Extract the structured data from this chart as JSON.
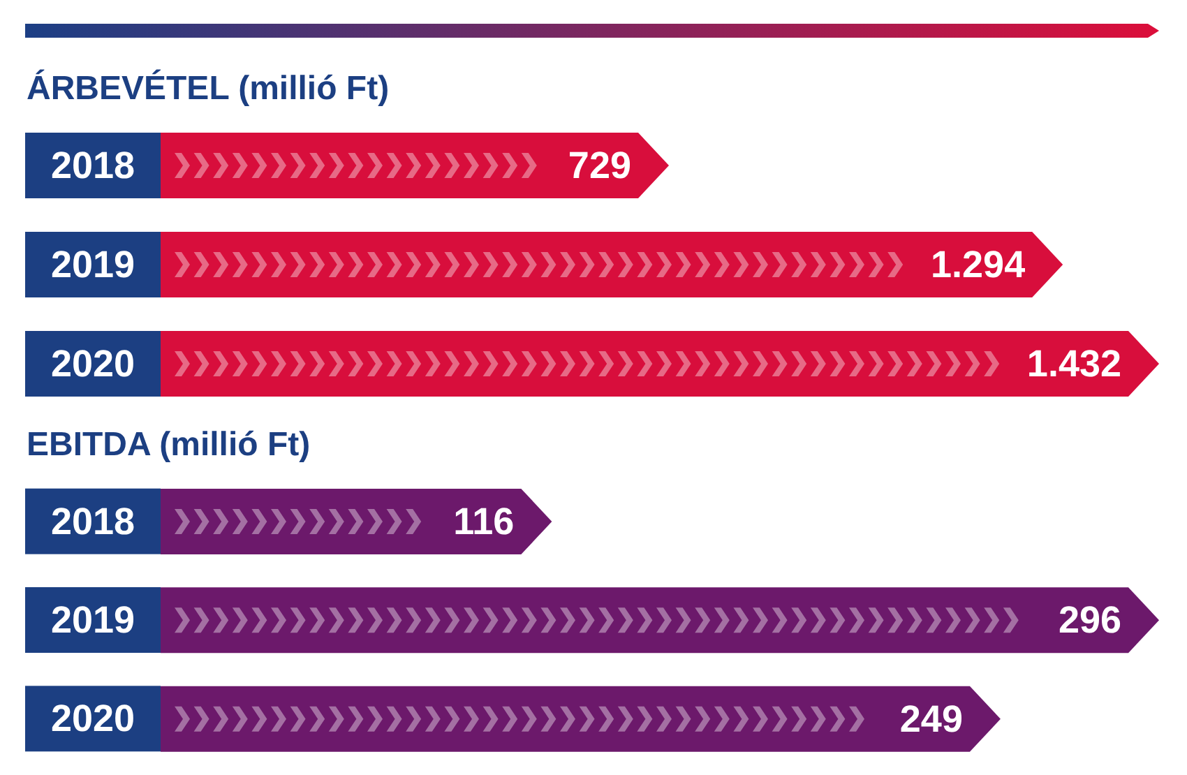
{
  "chart_data": [
    {
      "type": "bar",
      "orientation": "horizontal",
      "title": "ÁRBEVÉTEL (millió Ft)",
      "categories": [
        "2018",
        "2019",
        "2020"
      ],
      "values": [
        729,
        1294,
        1432
      ],
      "value_labels": [
        "729",
        "1.294",
        "1.432"
      ],
      "color": "#d80e3c"
    },
    {
      "type": "bar",
      "orientation": "horizontal",
      "title": "EBITDA (millió Ft)",
      "categories": [
        "2018",
        "2019",
        "2020"
      ],
      "values": [
        116,
        296,
        249
      ],
      "value_labels": [
        "116",
        "296",
        "249"
      ],
      "color": "#6c196b"
    }
  ]
}
